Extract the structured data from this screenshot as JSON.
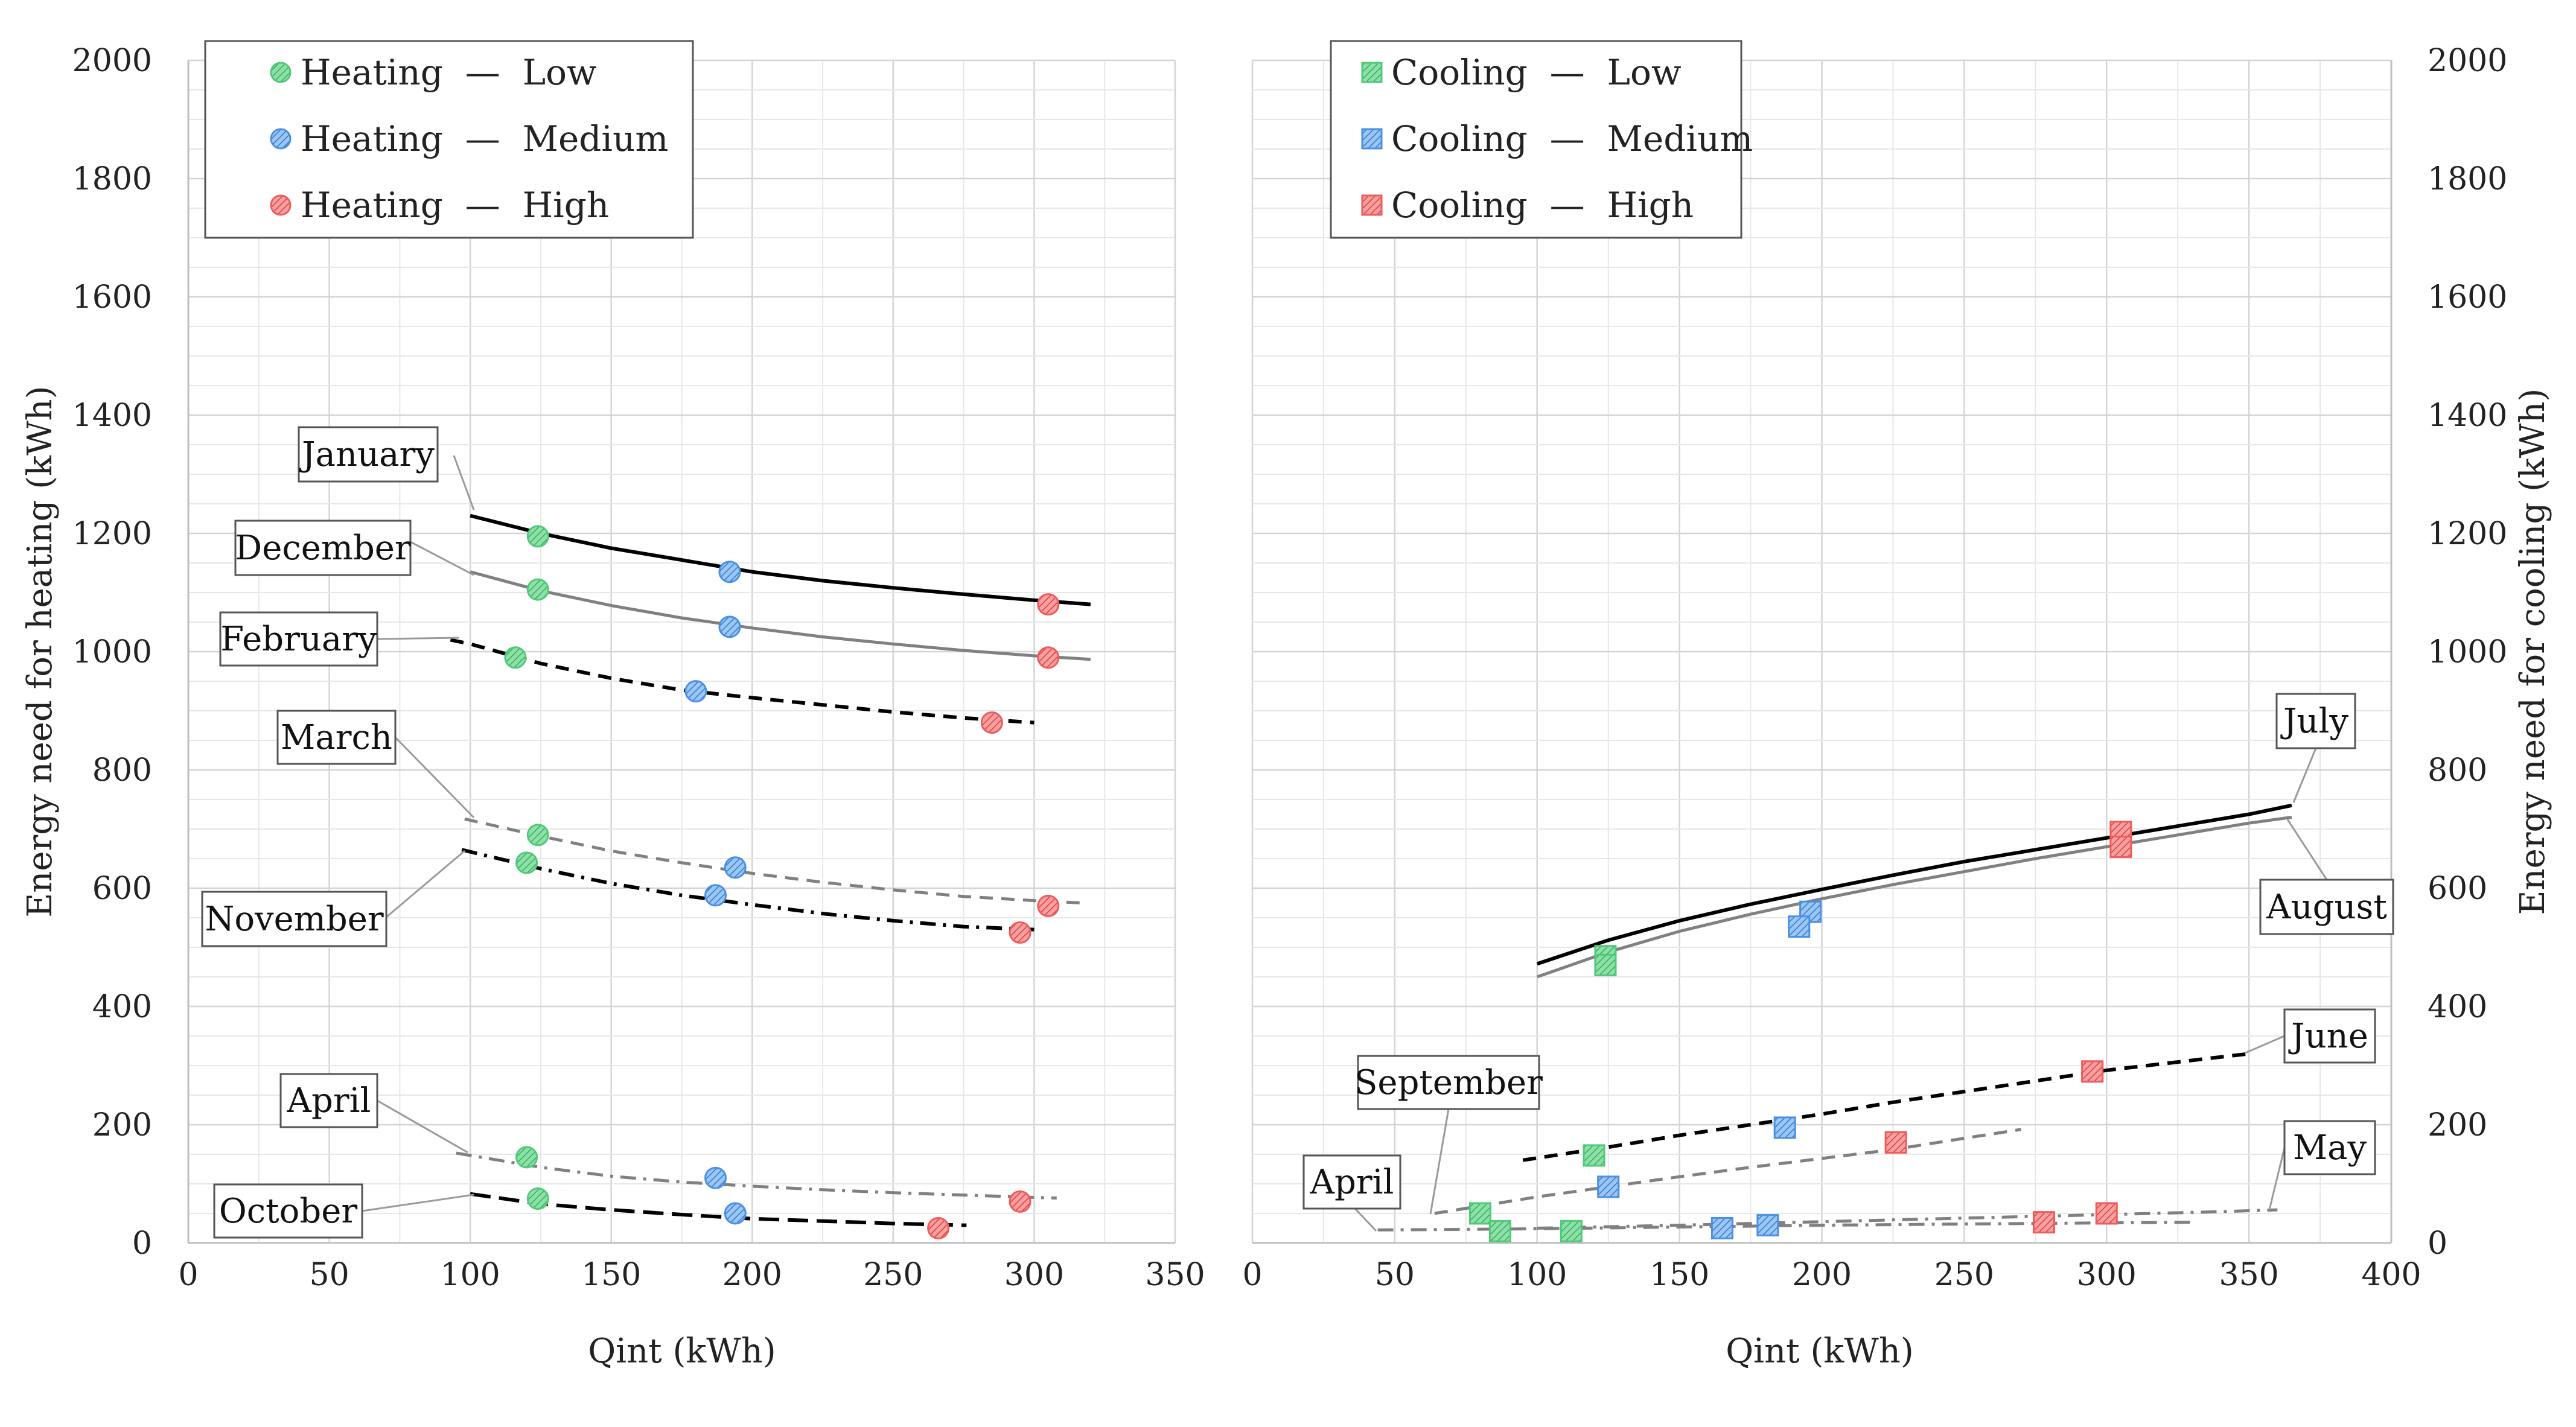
{
  "chart_data": [
    {
      "type": "scatter",
      "panel": "heating",
      "xlabel": "Qint (kWh)",
      "ylabel": "Energy need for heating (kWh)",
      "xlim": [
        0,
        350
      ],
      "ylim": [
        0,
        2000
      ],
      "xticks": [
        "0",
        "50",
        "100",
        "150",
        "200",
        "250",
        "300",
        "350"
      ],
      "yticks": [
        "0",
        "200",
        "400",
        "600",
        "800",
        "1000",
        "1200",
        "1400",
        "1600",
        "1800",
        "2000"
      ],
      "legend": [
        {
          "label": "Heating  —  Low",
          "color": "#4fc97a"
        },
        {
          "label": "Heating  —  Medium",
          "color": "#4a90e2"
        },
        {
          "label": "Heating  —  High",
          "color": "#f05a5a"
        }
      ],
      "series": [
        {
          "name": "January",
          "dash": "solid",
          "color": "#000000",
          "curve": [
            [
              100,
              1230
            ],
            [
              125,
              1200
            ],
            [
              150,
              1175
            ],
            [
              175,
              1155
            ],
            [
              200,
              1135
            ],
            [
              225,
              1120
            ],
            [
              250,
              1108
            ],
            [
              275,
              1097
            ],
            [
              300,
              1087
            ],
            [
              320,
              1080
            ]
          ],
          "points": [
            {
              "x": 124,
              "y": 1195,
              "level": "Low"
            },
            {
              "x": 192,
              "y": 1135,
              "level": "Medium"
            },
            {
              "x": 305,
              "y": 1080,
              "level": "High"
            }
          ]
        },
        {
          "name": "December",
          "dash": "solid",
          "color": "#808080",
          "curve": [
            [
              100,
              1135
            ],
            [
              125,
              1103
            ],
            [
              150,
              1078
            ],
            [
              175,
              1057
            ],
            [
              200,
              1040
            ],
            [
              225,
              1025
            ],
            [
              250,
              1013
            ],
            [
              275,
              1002
            ],
            [
              300,
              993
            ],
            [
              320,
              987
            ]
          ],
          "points": [
            {
              "x": 124,
              "y": 1105,
              "level": "Low"
            },
            {
              "x": 192,
              "y": 1042,
              "level": "Medium"
            },
            {
              "x": 305,
              "y": 990,
              "level": "High"
            }
          ]
        },
        {
          "name": "February",
          "dash": "dashed",
          "color": "#000000",
          "curve": [
            [
              93,
              1020
            ],
            [
              100,
              1013
            ],
            [
              125,
              980
            ],
            [
              150,
              955
            ],
            [
              175,
              935
            ],
            [
              200,
              922
            ],
            [
              225,
              910
            ],
            [
              250,
              898
            ],
            [
              275,
              888
            ],
            [
              300,
              880
            ]
          ],
          "points": [
            {
              "x": 116,
              "y": 990,
              "level": "Low"
            },
            {
              "x": 180,
              "y": 933,
              "level": "Medium"
            },
            {
              "x": 285,
              "y": 880,
              "level": "High"
            }
          ]
        },
        {
          "name": "March",
          "dash": "dashed",
          "color": "#808080",
          "curve": [
            [
              98,
              717
            ],
            [
              125,
              688
            ],
            [
              150,
              663
            ],
            [
              175,
              643
            ],
            [
              200,
              625
            ],
            [
              225,
              610
            ],
            [
              250,
              597
            ],
            [
              275,
              586
            ],
            [
              300,
              579
            ],
            [
              317,
              575
            ]
          ],
          "points": [
            {
              "x": 124,
              "y": 690,
              "level": "Low"
            },
            {
              "x": 194,
              "y": 635,
              "level": "Medium"
            },
            {
              "x": 305,
              "y": 570,
              "level": "High"
            }
          ]
        },
        {
          "name": "November",
          "dash": "dashdot",
          "color": "#000000",
          "curve": [
            [
              97,
              665
            ],
            [
              125,
              633
            ],
            [
              150,
              608
            ],
            [
              175,
              588
            ],
            [
              200,
              572
            ],
            [
              225,
              557
            ],
            [
              250,
              545
            ],
            [
              275,
              535
            ],
            [
              300,
              530
            ]
          ],
          "points": [
            {
              "x": 120,
              "y": 643,
              "level": "Low"
            },
            {
              "x": 187,
              "y": 588,
              "level": "Medium"
            },
            {
              "x": 295,
              "y": 525,
              "level": "High"
            }
          ]
        },
        {
          "name": "April",
          "dash": "dashdot",
          "color": "#808080",
          "curve": [
            [
              95,
              152
            ],
            [
              125,
              128
            ],
            [
              150,
              113
            ],
            [
              175,
              103
            ],
            [
              200,
              96
            ],
            [
              225,
              90
            ],
            [
              250,
              85
            ],
            [
              275,
              81
            ],
            [
              300,
              77
            ],
            [
              308,
              76
            ]
          ],
          "points": [
            {
              "x": 120,
              "y": 145,
              "level": "Low"
            },
            {
              "x": 187,
              "y": 110,
              "level": "Medium"
            },
            {
              "x": 295,
              "y": 70,
              "level": "High"
            }
          ]
        },
        {
          "name": "October",
          "dash": "longdash",
          "color": "#000000",
          "curve": [
            [
              100,
              83
            ],
            [
              125,
              66
            ],
            [
              150,
              56
            ],
            [
              175,
              48
            ],
            [
              200,
              41
            ],
            [
              225,
              37
            ],
            [
              250,
              33
            ],
            [
              275,
              30
            ],
            [
              276,
              30
            ]
          ],
          "points": [
            {
              "x": 124,
              "y": 75,
              "level": "Low"
            },
            {
              "x": 194,
              "y": 50,
              "level": "Medium"
            },
            {
              "x": 266,
              "y": 25,
              "level": "High"
            }
          ]
        }
      ],
      "callouts": [
        {
          "label": "January",
          "target": "January"
        },
        {
          "label": "December",
          "target": "December"
        },
        {
          "label": "February",
          "target": "February"
        },
        {
          "label": "March",
          "target": "March"
        },
        {
          "label": "November",
          "target": "November"
        },
        {
          "label": "April",
          "target": "April"
        },
        {
          "label": "October",
          "target": "October"
        }
      ]
    },
    {
      "type": "scatter",
      "panel": "cooling",
      "xlabel": "Qint (kWh)",
      "ylabel": "Energy need for cooling (kWh)",
      "xlim": [
        0,
        400
      ],
      "ylim": [
        0,
        2000
      ],
      "xticks": [
        "0",
        "50",
        "100",
        "150",
        "200",
        "250",
        "300",
        "350",
        "400"
      ],
      "yticks": [
        "0",
        "200",
        "400",
        "600",
        "800",
        "1000",
        "1200",
        "1400",
        "1600",
        "1800",
        "2000"
      ],
      "legend": [
        {
          "label": "Cooling  —  Low",
          "color": "#4fc97a"
        },
        {
          "label": "Cooling  —  Medium",
          "color": "#4a90e2"
        },
        {
          "label": "Cooling  —  High",
          "color": "#f05a5a"
        }
      ],
      "series": [
        {
          "name": "July",
          "dash": "solid",
          "color": "#000000",
          "curve": [
            [
              100,
              472
            ],
            [
              125,
              512
            ],
            [
              150,
              545
            ],
            [
              175,
              573
            ],
            [
              200,
              598
            ],
            [
              225,
              622
            ],
            [
              250,
              645
            ],
            [
              275,
              665
            ],
            [
              300,
              685
            ],
            [
              325,
              705
            ],
            [
              350,
              725
            ],
            [
              365,
              740
            ]
          ],
          "points": [
            {
              "x": 124,
              "y": 485,
              "level": "Low"
            },
            {
              "x": 196,
              "y": 560,
              "level": "Medium"
            },
            {
              "x": 305,
              "y": 695,
              "level": "High"
            }
          ]
        },
        {
          "name": "August",
          "dash": "solid",
          "color": "#808080",
          "curve": [
            [
              100,
              450
            ],
            [
              125,
              492
            ],
            [
              150,
              527
            ],
            [
              175,
              556
            ],
            [
              200,
              582
            ],
            [
              225,
              606
            ],
            [
              250,
              628
            ],
            [
              275,
              650
            ],
            [
              300,
              670
            ],
            [
              325,
              690
            ],
            [
              350,
              710
            ],
            [
              365,
              720
            ]
          ],
          "points": [
            {
              "x": 124,
              "y": 470,
              "level": "Low"
            },
            {
              "x": 192,
              "y": 535,
              "level": "Medium"
            },
            {
              "x": 305,
              "y": 670,
              "level": "High"
            }
          ]
        },
        {
          "name": "June",
          "dash": "dashed",
          "color": "#000000",
          "curve": [
            [
              95,
              140
            ],
            [
              125,
              162
            ],
            [
              150,
              182
            ],
            [
              175,
              200
            ],
            [
              200,
              218
            ],
            [
              225,
              238
            ],
            [
              250,
              256
            ],
            [
              275,
              274
            ],
            [
              300,
              292
            ],
            [
              325,
              306
            ],
            [
              350,
              320
            ]
          ],
          "points": [
            {
              "x": 120,
              "y": 148,
              "level": "Low"
            },
            {
              "x": 187,
              "y": 195,
              "level": "Medium"
            },
            {
              "x": 295,
              "y": 290,
              "level": "High"
            }
          ]
        },
        {
          "name": "September",
          "dash": "dashed",
          "color": "#808080",
          "curve": [
            [
              64,
              50
            ],
            [
              100,
              78
            ],
            [
              125,
              95
            ],
            [
              150,
              112
            ],
            [
              175,
              128
            ],
            [
              200,
              143
            ],
            [
              225,
              158
            ],
            [
              250,
              177
            ],
            [
              270,
              192
            ]
          ],
          "points": [
            {
              "x": 80,
              "y": 50,
              "level": "Low"
            },
            {
              "x": 125,
              "y": 95,
              "level": "Medium"
            },
            {
              "x": 226,
              "y": 170,
              "level": "High"
            }
          ]
        },
        {
          "name": "May",
          "dash": "dashdot",
          "color": "#808080",
          "curve": [
            [
              100,
              25
            ],
            [
              150,
              30
            ],
            [
              200,
              36
            ],
            [
              250,
              42
            ],
            [
              300,
              48
            ],
            [
              340,
              53
            ],
            [
              360,
              56
            ]
          ],
          "points": [
            {
              "x": 112,
              "y": 20,
              "level": "Low"
            },
            {
              "x": 181,
              "y": 30,
              "level": "Medium"
            },
            {
              "x": 300,
              "y": 50,
              "level": "High"
            }
          ]
        },
        {
          "name": "April",
          "dash": "dashdot",
          "color": "#808080",
          "curve": [
            [
              44,
              22
            ],
            [
              100,
              24
            ],
            [
              150,
              27
            ],
            [
              200,
              30
            ],
            [
              250,
              32
            ],
            [
              300,
              34
            ],
            [
              330,
              35
            ]
          ],
          "points": [
            {
              "x": 87,
              "y": 20,
              "level": "Low"
            },
            {
              "x": 165,
              "y": 25,
              "level": "Medium"
            },
            {
              "x": 278,
              "y": 35,
              "level": "High"
            }
          ]
        }
      ],
      "callouts": [
        {
          "label": "July",
          "target": "July"
        },
        {
          "label": "August",
          "target": "August"
        },
        {
          "label": "June",
          "target": "June"
        },
        {
          "label": "September",
          "target": "September"
        },
        {
          "label": "May",
          "target": "May"
        },
        {
          "label": "April",
          "target": "April"
        }
      ]
    }
  ]
}
